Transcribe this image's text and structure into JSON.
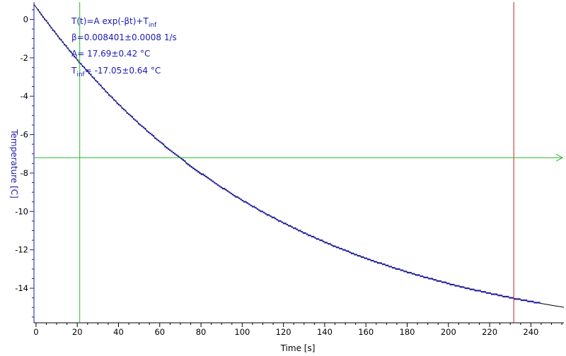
{
  "chart_data": {
    "type": "scatter",
    "xlabel": "Time [s]",
    "ylabel": "Temperature [C]",
    "xlim": [
      -1,
      256
    ],
    "ylim": [
      -15.8,
      0.9
    ],
    "x_ticks": [
      0,
      20,
      40,
      60,
      80,
      100,
      120,
      140,
      160,
      180,
      200,
      220,
      240
    ],
    "y_ticks": [
      0,
      -2,
      -4,
      -6,
      -8,
      -10,
      -12,
      -14
    ],
    "x_minor_step": 5,
    "y_minor_step": 0.5,
    "grid": false,
    "measured": {
      "t_start": 1,
      "t_end": 245,
      "step": 0.8,
      "color": "#1f1fa8"
    },
    "fit": {
      "model": "T(t)=A exp(-βt)+T_inf",
      "A": 17.69,
      "beta": 0.008401,
      "T_inf": -17.05,
      "color": "#000000"
    },
    "annotations": {
      "formula_main": "T(t)=A exp(-βt)+T",
      "formula_sub": "inf",
      "beta_text": "β=0.008401±0.0008 1/s",
      "a_text": "A= 17.69±0.42 °C",
      "tinf_main": "T",
      "tinf_sub": "inf",
      "tinf_value": "= -17.05±0.64 °C",
      "color": "#1a1ab8"
    },
    "cursors": {
      "vertical_green_x": 21.2,
      "vertical_red_x": 231.7,
      "horizontal_green_y": -7.2,
      "green_color": "#22bb22",
      "red_color": "#cc2222"
    },
    "axis_color": "#1a1aa6"
  }
}
